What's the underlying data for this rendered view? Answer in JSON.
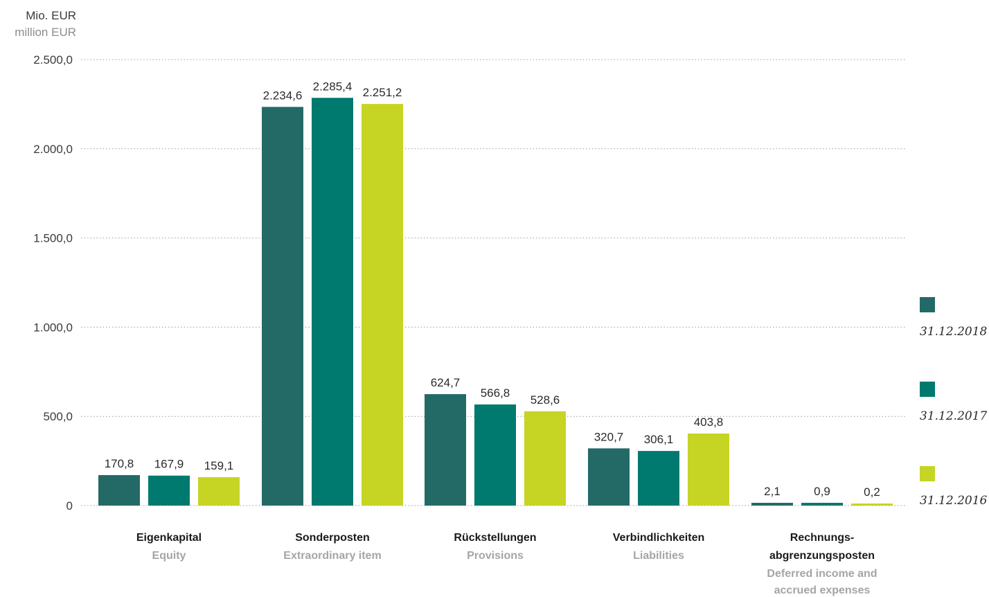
{
  "chart_data": {
    "type": "bar",
    "unit_label": "Mio. EUR",
    "unit_label_en": "million EUR",
    "ylim": [
      0,
      2500
    ],
    "yticks": [
      0,
      500,
      1000,
      1500,
      2000,
      2500
    ],
    "ytick_labels": [
      "0",
      "500,0",
      "1.000,0",
      "1.500,0",
      "2.000,0",
      "2.500,0"
    ],
    "grid": true,
    "legend_position": "right",
    "categories": [
      {
        "label": "Eigenkapital",
        "label_en": "Equity"
      },
      {
        "label": "Sonderposten",
        "label_en": "Extraordinary item"
      },
      {
        "label": "Rückstellungen",
        "label_en": "Provisions"
      },
      {
        "label": "Verbindlichkeiten",
        "label_en": "Liabilities"
      },
      {
        "label": "Rechnungs-\nabgrenzungsposten",
        "label_en": "Deferred income and\naccrued expenses"
      }
    ],
    "series": [
      {
        "name": "31.12.2018",
        "color": "#236a67",
        "values": [
          170.8,
          2234.6,
          624.7,
          320.7,
          2.1
        ],
        "value_labels": [
          "170,8",
          "2.234,6",
          "624,7",
          "320,7",
          "2,1"
        ]
      },
      {
        "name": "31.12.2017",
        "color": "#00796e",
        "values": [
          167.9,
          2285.4,
          566.8,
          306.1,
          0.9
        ],
        "value_labels": [
          "167,9",
          "2.285,4",
          "566,8",
          "306,1",
          "0,9"
        ]
      },
      {
        "name": "31.12.2016",
        "color": "#c6d424",
        "values": [
          159.1,
          2251.2,
          528.6,
          403.8,
          0.2
        ],
        "value_labels": [
          "159,1",
          "2.251,2",
          "528,6",
          "403,8",
          "0,2"
        ]
      }
    ]
  }
}
